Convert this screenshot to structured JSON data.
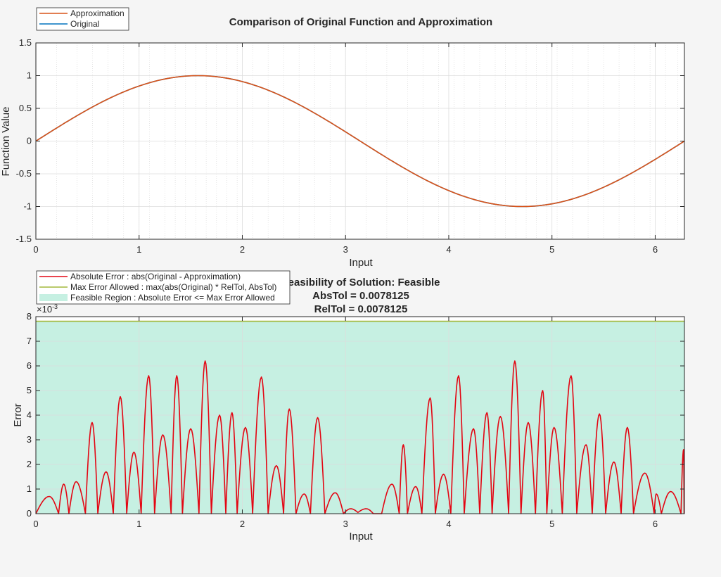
{
  "chart_data": [
    {
      "type": "line",
      "title": "Comparison of Original Function and Approximation",
      "xlabel": "Input",
      "ylabel": "Function Value",
      "xlim": [
        0,
        6.2832
      ],
      "ylim": [
        -1.5,
        1.5
      ],
      "xticks": [
        0,
        1,
        2,
        3,
        4,
        5,
        6
      ],
      "xtick_labels": [
        "0",
        "1",
        "2",
        "3",
        "4",
        "5",
        "6"
      ],
      "yticks": [
        -1.5,
        -1,
        -0.5,
        0,
        0.5,
        1,
        1.5
      ],
      "ytick_labels": [
        "-1.5",
        "-1",
        "-0.5",
        "0",
        "0.5",
        "1",
        "1.5"
      ],
      "grid": true,
      "minor_grid_x": [
        0.0,
        0.2,
        0.4,
        0.55,
        0.7,
        0.85,
        1.0,
        1.1,
        1.25,
        1.35,
        1.45,
        1.55,
        1.65,
        1.75,
        1.85,
        1.95,
        2.1,
        2.25,
        2.4,
        2.55,
        2.7,
        2.85,
        3.0,
        3.2,
        3.4,
        3.6,
        3.75,
        3.9,
        4.05,
        4.15,
        4.3,
        4.45,
        4.55,
        4.65,
        4.75,
        4.85,
        4.95,
        5.05,
        5.2,
        5.35,
        5.5,
        5.65,
        5.8,
        5.95,
        6.1,
        6.22
      ],
      "legend_location": "northwest",
      "function": "sin(x)",
      "series": [
        {
          "name": "Approximation",
          "color": "#D95319",
          "x": [
            0,
            0.2618,
            0.5236,
            0.7854,
            1.0472,
            1.309,
            1.5708,
            1.8326,
            2.0944,
            2.3562,
            2.618,
            2.8798,
            3.1416,
            3.4034,
            3.6652,
            3.927,
            4.1888,
            4.4506,
            4.7124,
            4.9742,
            5.236,
            5.4978,
            5.7596,
            6.0214,
            6.2832
          ],
          "y": [
            0,
            0.2588,
            0.5,
            0.7071,
            0.866,
            0.9659,
            1,
            0.9659,
            0.866,
            0.7071,
            0.5,
            0.2588,
            0,
            -0.2588,
            -0.5,
            -0.7071,
            -0.866,
            -0.9659,
            -1,
            -0.9659,
            -0.866,
            -0.7071,
            -0.5,
            -0.2588,
            0
          ]
        },
        {
          "name": "Original",
          "color": "#0072BD",
          "x": [
            0,
            0.2618,
            0.5236,
            0.7854,
            1.0472,
            1.309,
            1.5708,
            1.8326,
            2.0944,
            2.3562,
            2.618,
            2.8798,
            3.1416,
            3.4034,
            3.6652,
            3.927,
            4.1888,
            4.4506,
            4.7124,
            4.9742,
            5.236,
            5.4978,
            5.7596,
            6.0214,
            6.2832
          ],
          "y": [
            0,
            0.2588,
            0.5,
            0.7071,
            0.866,
            0.9659,
            1,
            0.9659,
            0.866,
            0.7071,
            0.5,
            0.2588,
            0,
            -0.2588,
            -0.5,
            -0.7071,
            -0.866,
            -0.9659,
            -1,
            -0.9659,
            -0.866,
            -0.7071,
            -0.5,
            -0.2588,
            0
          ]
        }
      ]
    },
    {
      "type": "line",
      "title_lines": [
        "Feasibility of Solution: Feasible",
        "AbsTol = 0.0078125",
        "RelTol = 0.0078125"
      ],
      "xlabel": "Input",
      "ylabel": "Error",
      "y_exponent_label": "×10",
      "y_exponent": "-3",
      "xlim": [
        0,
        6.2832
      ],
      "ylim": [
        0,
        8
      ],
      "xticks": [
        0,
        1,
        2,
        3,
        4,
        5,
        6
      ],
      "xtick_labels": [
        "0",
        "1",
        "2",
        "3",
        "4",
        "5",
        "6"
      ],
      "yticks": [
        0,
        1,
        2,
        3,
        4,
        5,
        6,
        7,
        8
      ],
      "ytick_labels": [
        "0",
        "1",
        "2",
        "3",
        "4",
        "5",
        "6",
        "7",
        "8"
      ],
      "grid": true,
      "legend_location": "northwest",
      "series": [
        {
          "name": "Absolute Error : abs(Original - Approximation)",
          "color": "#E30613",
          "x": [
            0,
            0.13,
            0.22,
            0.27,
            0.32,
            0.39,
            0.48,
            0.545,
            0.6,
            0.68,
            0.75,
            0.818,
            0.88,
            0.95,
            1.02,
            1.093,
            1.15,
            1.23,
            1.31,
            1.365,
            1.42,
            1.5,
            1.58,
            1.64,
            1.7,
            1.78,
            1.84,
            1.9,
            1.95,
            2.03,
            2.1,
            2.185,
            2.25,
            2.33,
            2.4,
            2.455,
            2.52,
            2.6,
            2.66,
            2.73,
            2.8,
            2.9,
            2.98,
            3.05,
            3.12,
            3.2,
            3.27,
            3.35,
            3.45,
            3.52,
            3.56,
            3.6,
            3.68,
            3.74,
            3.82,
            3.87,
            3.95,
            4.02,
            4.095,
            4.15,
            4.24,
            4.3,
            4.37,
            4.42,
            4.5,
            4.58,
            4.64,
            4.7,
            4.77,
            4.84,
            4.91,
            4.95,
            5.02,
            5.1,
            5.185,
            5.24,
            5.33,
            5.39,
            5.46,
            5.52,
            5.6,
            5.67,
            5.73,
            5.79,
            5.9,
            5.99,
            6.01,
            6.06,
            6.15,
            6.25,
            6.275,
            6.28
          ],
          "y": [
            0,
            0.7,
            0,
            1.2,
            0,
            1.3,
            0,
            3.7,
            0,
            1.7,
            0,
            4.75,
            0,
            2.5,
            0,
            5.6,
            0,
            3.2,
            0,
            5.6,
            0,
            3.45,
            0,
            6.2,
            0,
            4.0,
            0,
            4.1,
            0,
            3.5,
            0,
            5.55,
            0,
            1.95,
            0,
            4.25,
            0,
            0.8,
            0,
            3.9,
            0,
            0.85,
            0,
            0.2,
            0.05,
            0.2,
            0,
            0,
            1.2,
            0,
            2.8,
            0,
            1.1,
            0,
            4.7,
            0,
            1.6,
            0,
            5.6,
            0,
            3.45,
            0,
            4.1,
            0,
            3.95,
            0,
            6.2,
            0,
            3.7,
            0,
            5.0,
            0,
            3.5,
            0,
            5.6,
            0,
            2.8,
            0,
            4.05,
            0,
            2.1,
            0,
            3.5,
            0,
            1.65,
            0,
            0.8,
            0,
            0.9,
            0,
            2.6,
            0
          ]
        },
        {
          "name": "Max Error Allowed : max(abs(Original) * RelTol, AbsTol)",
          "color": "#A2B83A",
          "x": [
            0,
            6.2832
          ],
          "y": [
            7.8125,
            7.8125
          ]
        },
        {
          "name": "Feasible Region : Absolute Error <= Max Error Allowed",
          "color": "#c6f0e2",
          "fill_to": 7.8125
        }
      ]
    }
  ]
}
